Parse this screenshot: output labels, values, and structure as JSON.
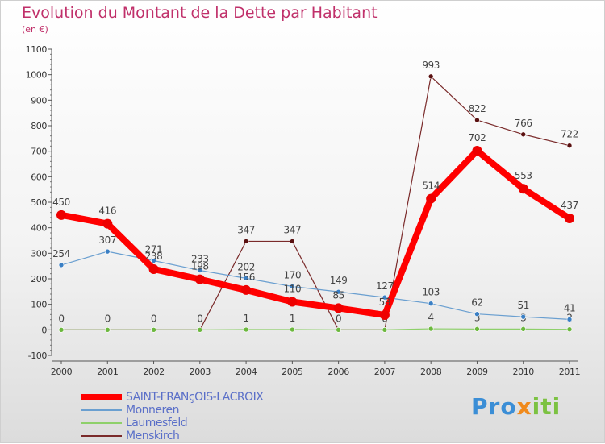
{
  "title": "Evolution du Montant de la Dette par Habitant",
  "subtitle": "(en €)",
  "logo": {
    "text_a": "Pro",
    "text_b": "x",
    "text_c": "iti"
  },
  "chart_data": {
    "type": "line",
    "x": [
      "2000",
      "2001",
      "2002",
      "2003",
      "2004",
      "2005",
      "2006",
      "2007",
      "2008",
      "2009",
      "2010",
      "2011"
    ],
    "ylim": [
      -100,
      1100
    ],
    "yticks": [
      "-100",
      "0",
      "100",
      "200",
      "300",
      "400",
      "500",
      "600",
      "700",
      "800",
      "900",
      "1000",
      "1100"
    ],
    "grid": false,
    "legend_position": "bottom-left",
    "series": [
      {
        "name": "Menskirch",
        "color": "#7a2a2a",
        "point_color": "#5a1010",
        "width": 1.2,
        "values": [
          0,
          0,
          0,
          0,
          347,
          347,
          0,
          0,
          993,
          822,
          766,
          722
        ],
        "labels": [
          "0",
          "0",
          "0",
          "0",
          "347",
          "347",
          "0",
          "0",
          "993",
          "822",
          "766",
          "722"
        ]
      },
      {
        "name": "Laumesfeld",
        "color": "#8ed06a",
        "point_color": "#6cb83e",
        "width": 1.2,
        "values": [
          0,
          0,
          0,
          0,
          1,
          1,
          0,
          0,
          4,
          3,
          3,
          2
        ],
        "labels": [
          "",
          "",
          "",
          "",
          "1",
          "1",
          "",
          "",
          "4",
          "3",
          "3",
          "2"
        ]
      },
      {
        "name": "Monneren",
        "color": "#6a9fd0",
        "point_color": "#3a7fc4",
        "width": 1.2,
        "values": [
          254,
          307,
          271,
          233,
          202,
          170,
          149,
          127,
          103,
          62,
          51,
          41
        ],
        "labels": [
          "254",
          "307",
          "271",
          "233",
          "202",
          "170",
          "149",
          "127",
          "103",
          "62",
          "51",
          "41"
        ]
      },
      {
        "name": "SAINT-FRANçOIS-LACROIX",
        "color": "#ff0000",
        "point_color": "#ee0000",
        "width": 8,
        "values": [
          450,
          416,
          238,
          198,
          156,
          110,
          85,
          58,
          514,
          702,
          553,
          437
        ],
        "labels": [
          "450",
          "416",
          "238",
          "198",
          "156",
          "110",
          "85",
          "58",
          "514",
          "702",
          "553",
          "437"
        ]
      }
    ]
  }
}
